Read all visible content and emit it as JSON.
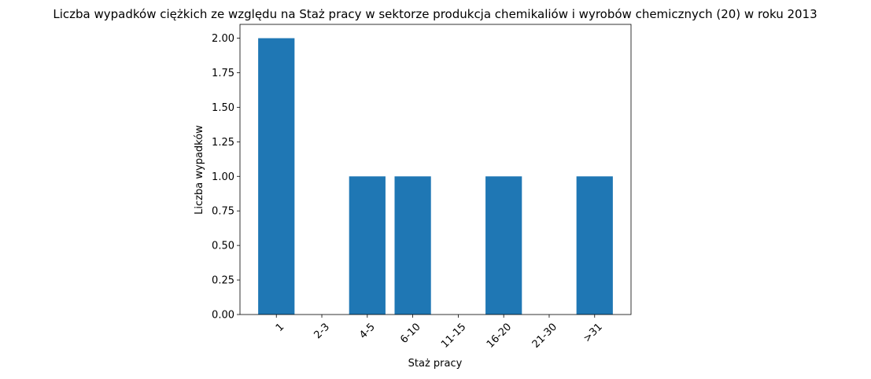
{
  "chart_data": {
    "type": "bar",
    "title": "Liczba wypadków ciężkich ze względu na Staż pracy w sektorze produkcja chemikaliów i wyrobów  chemicznych (20) w roku 2013",
    "xlabel": "Staż pracy",
    "ylabel": "Liczba wypadków",
    "categories": [
      "1",
      "2-3",
      "4-5",
      "6-10",
      "11-15",
      "16-20",
      "21-30",
      ">31"
    ],
    "values": [
      2,
      0,
      1,
      1,
      0,
      1,
      0,
      1
    ],
    "ylim": [
      0,
      2.1
    ],
    "yticks": [
      "0.00",
      "0.25",
      "0.50",
      "0.75",
      "1.00",
      "1.25",
      "1.50",
      "1.75",
      "2.00"
    ],
    "x_tick_rotation_deg": 45,
    "bar_color": "#1f77b4",
    "grid": false,
    "legend": "none"
  }
}
